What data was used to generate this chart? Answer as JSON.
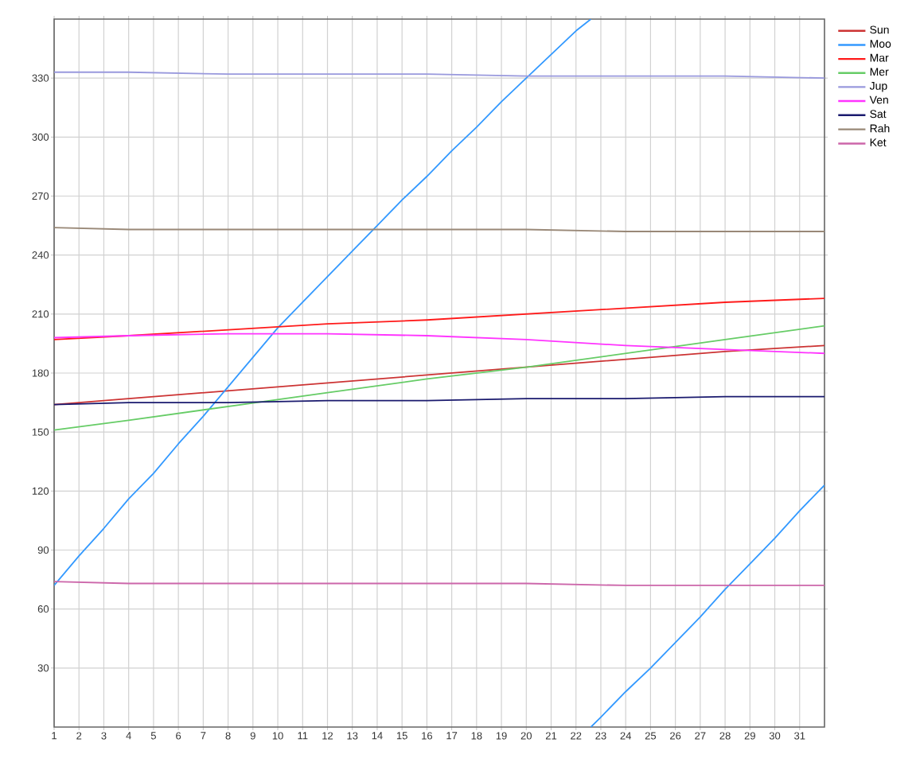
{
  "chart_data": {
    "type": "line",
    "x": [
      1,
      4,
      8,
      12,
      16,
      20,
      24,
      28,
      32
    ],
    "xlim": [
      1,
      32
    ],
    "xticks": [
      1,
      2,
      3,
      4,
      5,
      6,
      7,
      8,
      9,
      10,
      11,
      12,
      13,
      14,
      15,
      16,
      17,
      18,
      19,
      20,
      21,
      22,
      23,
      24,
      25,
      26,
      27,
      28,
      29,
      30,
      31
    ],
    "ylim": [
      0,
      360
    ],
    "yticks": [
      30,
      60,
      90,
      120,
      150,
      180,
      210,
      240,
      270,
      300,
      330
    ],
    "grid": true,
    "legend": "right",
    "line_style": "solid",
    "marker": "none",
    "series": [
      {
        "name": "Sun",
        "color": "#cc3333",
        "values": [
          164,
          167,
          171,
          175,
          179,
          183,
          187,
          191,
          194
        ]
      },
      {
        "name": "Moo",
        "color": "#3399ff",
        "x": [
          1,
          2,
          3,
          4,
          5,
          6,
          7,
          8,
          9,
          10,
          11,
          12,
          13,
          14,
          15,
          16,
          17,
          18,
          19,
          20,
          21,
          22,
          22.6
        ],
        "values": [
          72,
          87,
          101,
          116,
          129,
          144,
          158,
          173,
          188,
          203,
          216,
          229,
          242,
          255,
          268,
          280,
          293,
          305,
          318,
          330,
          342,
          354,
          360
        ]
      },
      {
        "color": "#3399ff",
        "x": [
          22.6,
          23,
          24,
          25,
          26,
          27,
          28,
          29,
          30,
          31,
          32
        ],
        "values": [
          0,
          5,
          18,
          30,
          43,
          56,
          70,
          83,
          96,
          110,
          123
        ]
      },
      {
        "name": "Mar",
        "color": "#ff1a1a",
        "values": [
          197,
          199,
          202,
          205,
          207,
          210,
          213,
          216,
          218
        ]
      },
      {
        "name": "Mer",
        "color": "#66cc66",
        "values": [
          151,
          156,
          163,
          170,
          177,
          183,
          190,
          197,
          204
        ]
      },
      {
        "name": "Jup",
        "color": "#9999dd",
        "values": [
          333,
          333,
          332,
          332,
          332,
          331,
          331,
          331,
          330
        ]
      },
      {
        "name": "Ven",
        "color": "#ff33ff",
        "values": [
          198,
          199,
          200,
          200,
          199,
          197,
          194,
          192,
          190
        ]
      },
      {
        "name": "Sat",
        "color": "#1a1a6e",
        "values": [
          164,
          165,
          165,
          166,
          166,
          167,
          167,
          168,
          168
        ]
      },
      {
        "name": "Rah",
        "color": "#998877",
        "values": [
          254,
          253,
          253,
          253,
          253,
          253,
          252,
          252,
          252
        ]
      },
      {
        "name": "Ket",
        "color": "#cc66aa",
        "values": [
          74,
          73,
          73,
          73,
          73,
          73,
          72,
          72,
          72
        ]
      }
    ]
  }
}
